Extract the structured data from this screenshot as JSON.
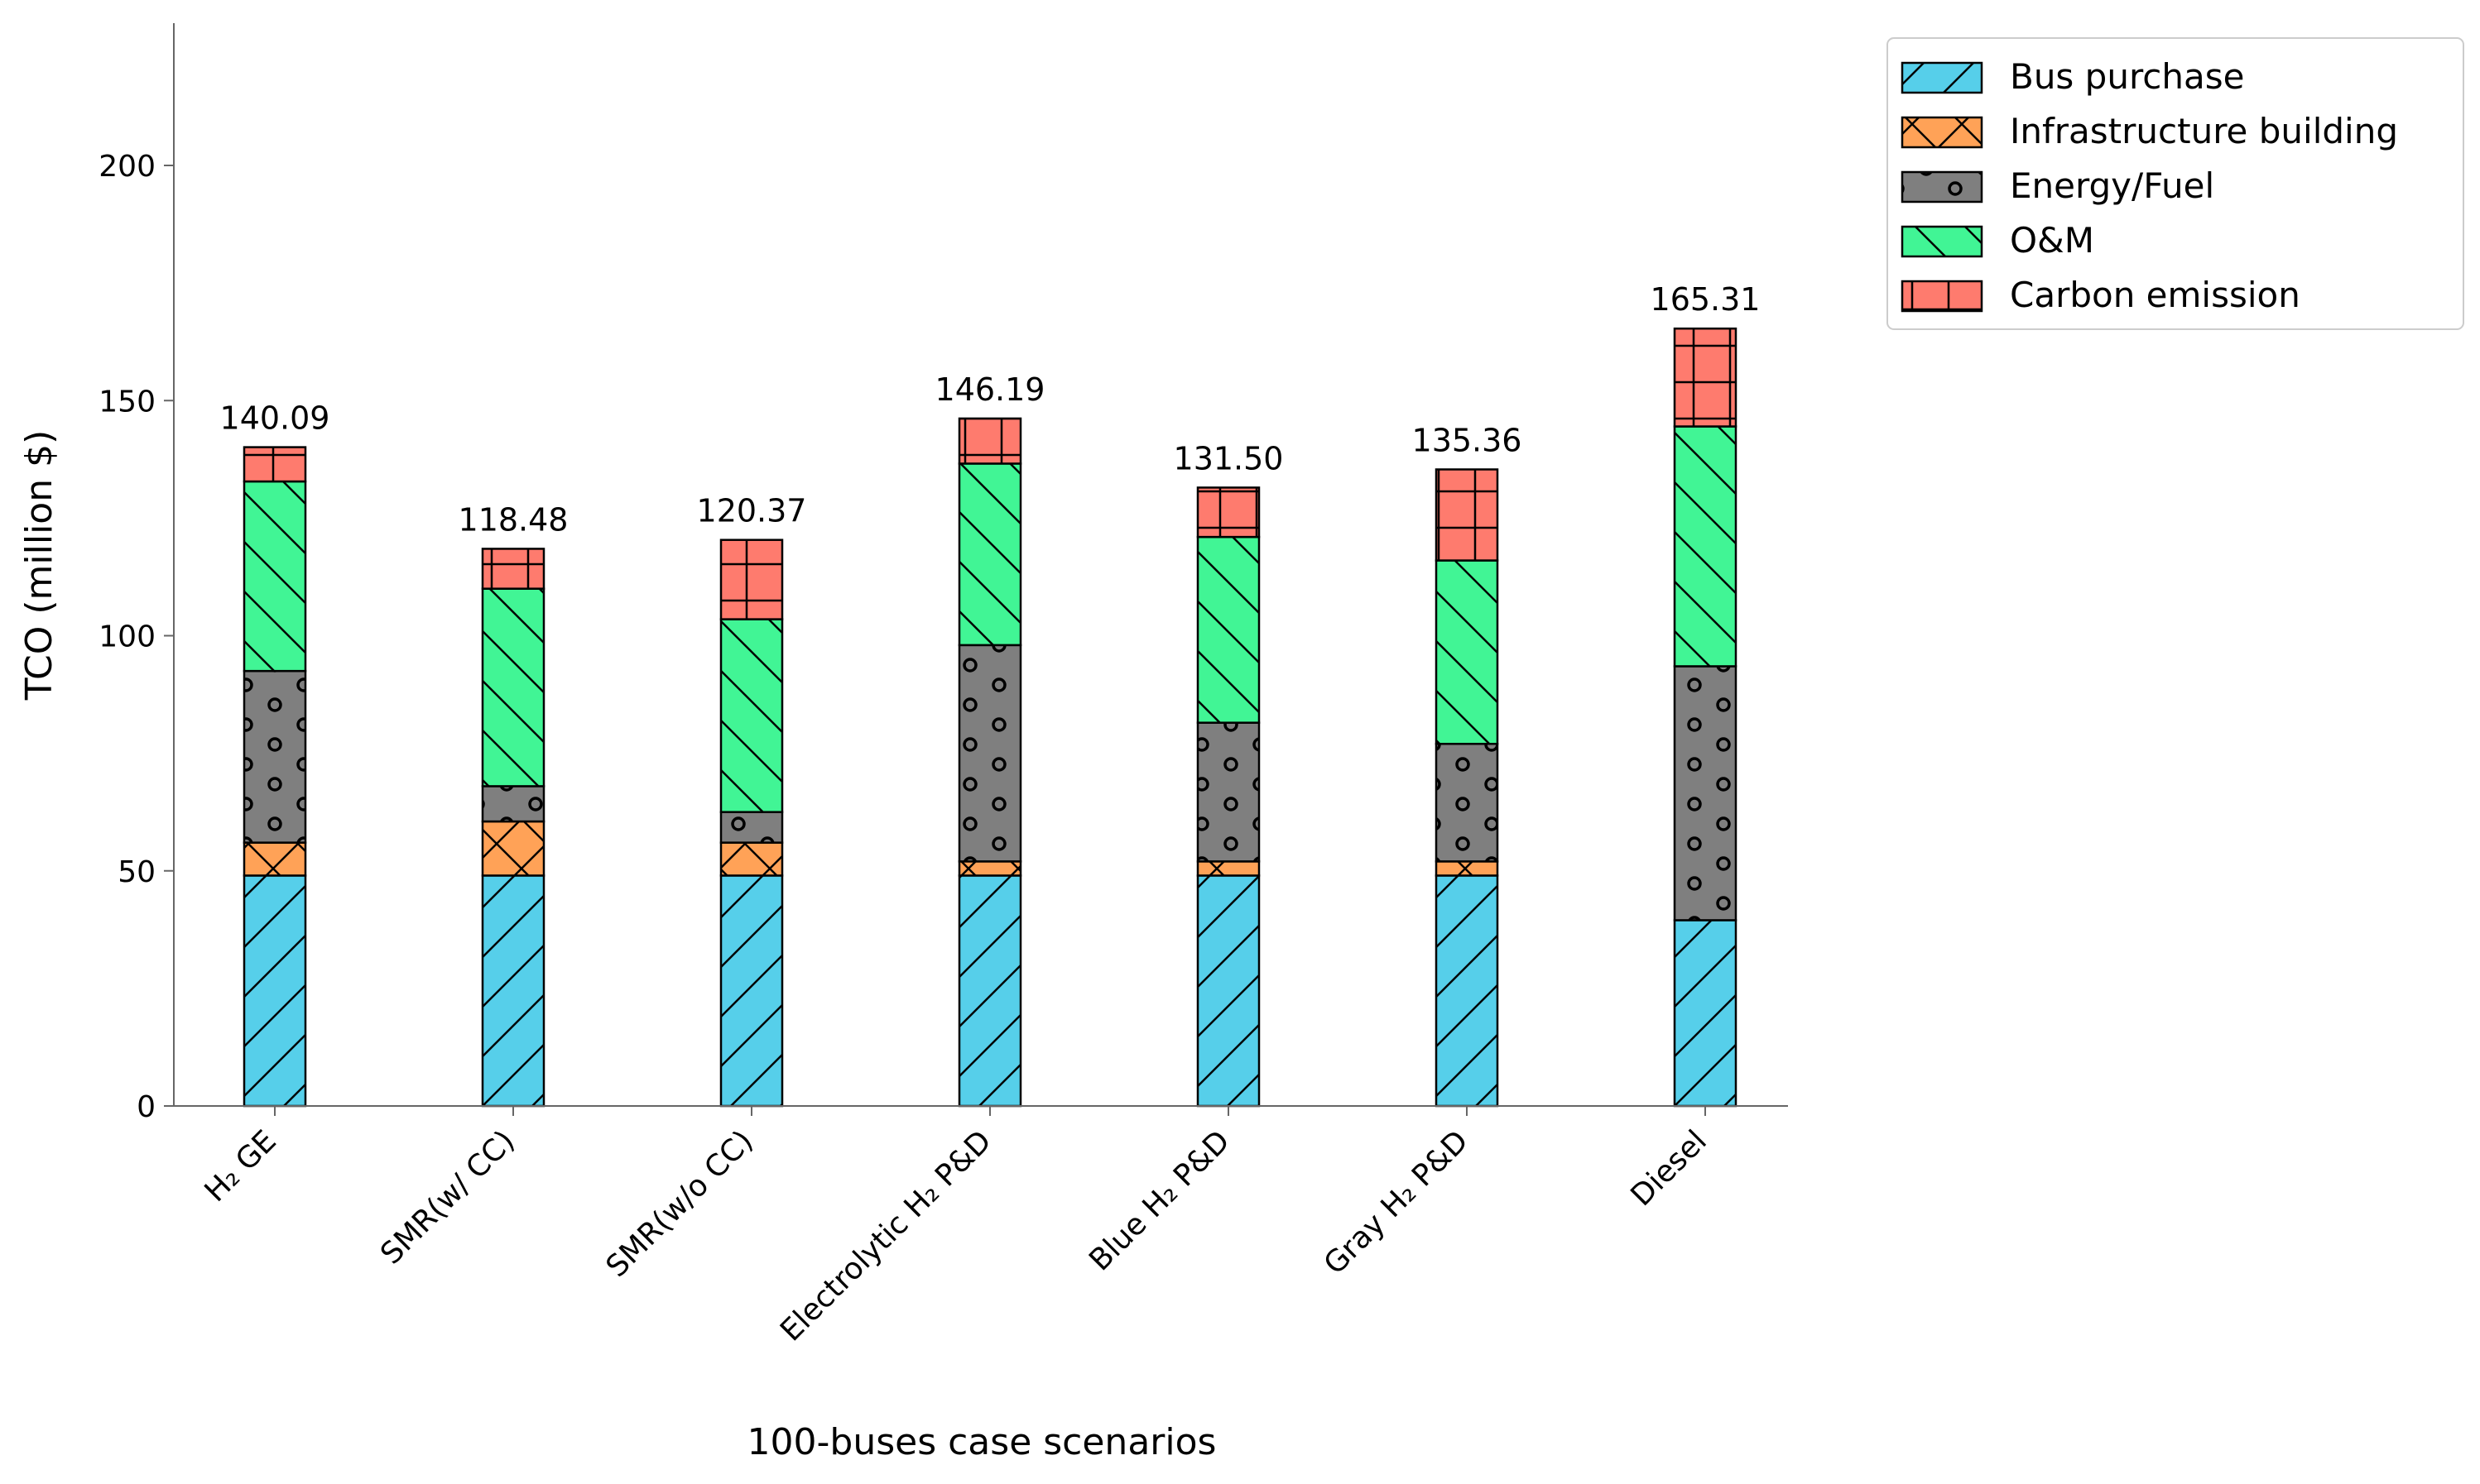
{
  "chart_data": {
    "type": "bar",
    "stacked": true,
    "title": "",
    "xlabel": "100-buses case scenarios",
    "ylabel": "TCO (million $)",
    "ylim": [
      0,
      230
    ],
    "yticks": [
      0,
      50,
      100,
      150,
      200
    ],
    "categories": [
      "H₂ GE",
      "SMR(w/ CC)",
      "SMR(w/o CC)",
      "Electrolytic H₂ P&D",
      "Blue H₂ P&D",
      "Gray H₂ P&D",
      "Diesel"
    ],
    "totals": [
      "140.09",
      "118.48",
      "120.37",
      "146.19",
      "131.50",
      "135.36",
      "165.31"
    ],
    "legend_position": "upper-right-outside",
    "series": [
      {
        "name": "Bus purchase",
        "color": "#56cfea",
        "hatch": "diagonal",
        "values": [
          49,
          49,
          49,
          49,
          49,
          49,
          39.5
        ]
      },
      {
        "name": "Infrastructure building",
        "color": "#ffa257",
        "hatch": "cross",
        "values": [
          7,
          11.5,
          7,
          3,
          3,
          3,
          0
        ]
      },
      {
        "name": "Energy/Fuel",
        "color": "#7f7f7f",
        "hatch": "circles",
        "values": [
          36.5,
          7.5,
          6.5,
          46,
          29.5,
          25,
          54
        ]
      },
      {
        "name": "O&M",
        "color": "#41f595",
        "hatch": "backslash",
        "values": [
          40.3,
          42,
          41,
          38.6,
          39.5,
          39,
          51
        ]
      },
      {
        "name": "Carbon emission",
        "color": "#fe7b6e",
        "hatch": "grid",
        "values": [
          7.29,
          8.48,
          16.87,
          9.59,
          10.5,
          19.36,
          20.81
        ]
      }
    ]
  }
}
